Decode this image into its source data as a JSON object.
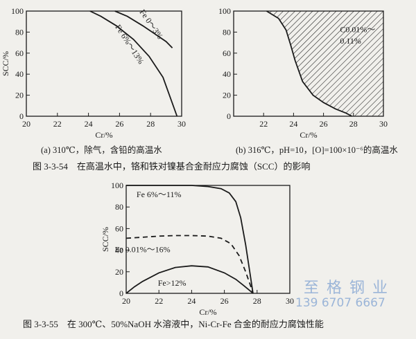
{
  "chart_data": [
    {
      "type": "line",
      "panel": "a",
      "xlabel": "Cr/%",
      "ylabel": "SCC/%",
      "xlim": [
        20,
        30
      ],
      "ylim": [
        0,
        100
      ],
      "xticks": [
        20,
        22,
        24,
        26,
        28,
        30
      ],
      "yticks": [
        0,
        20,
        40,
        60,
        80,
        100
      ],
      "grid": false,
      "series": [
        {
          "name": "Fe 0～3%",
          "x": [
            25.7,
            26.5,
            27.5,
            28.3,
            29.0,
            29.4
          ],
          "y": [
            100,
            95,
            86,
            78,
            71,
            65
          ]
        },
        {
          "name": "Fe 6%～13%",
          "x": [
            24.1,
            24.8,
            25.8,
            26.9,
            27.9,
            28.8,
            29.7
          ],
          "y": [
            100,
            95,
            86,
            73,
            57,
            37,
            0
          ]
        }
      ],
      "caption": "(a) 310℃，除气，含铅的高温水"
    },
    {
      "type": "area",
      "panel": "b",
      "xlabel": "Cr/%",
      "ylabel": "",
      "xlim": [
        20,
        30
      ],
      "ylim": [
        0,
        100
      ],
      "xticks": [
        22,
        24,
        26,
        28,
        30
      ],
      "yticks": [
        0,
        20,
        40,
        60,
        80,
        100
      ],
      "grid": false,
      "series": [
        {
          "name": "C0.01%～0.11%",
          "x": [
            22.2,
            23.0,
            23.5,
            23.8,
            24.1,
            24.6,
            25.3,
            26.0,
            26.8,
            27.5,
            27.9
          ],
          "y": [
            100,
            93,
            82,
            68,
            53,
            33,
            20,
            13,
            7,
            3,
            0
          ],
          "fill": "hatched region between curve and top edge"
        }
      ],
      "annotation": [
        "C0.01%～",
        "0.11%"
      ],
      "caption": "(b) 316℃，pH=10，[O]=100×10⁻⁶的高温水"
    },
    {
      "type": "line",
      "panel": "c",
      "xlabel": "Cr/%",
      "ylabel": "SCC/%",
      "xlim": [
        20,
        30
      ],
      "ylim": [
        0,
        100
      ],
      "xticks": [
        20,
        22,
        24,
        26,
        28,
        30
      ],
      "yticks": [
        0,
        20,
        40,
        60,
        80,
        100
      ],
      "grid": false,
      "series": [
        {
          "name": "Fe 6%～11%",
          "style": "solid",
          "x": [
            20,
            21,
            22,
            23,
            24,
            25,
            25.8,
            26.3,
            26.7,
            27.0,
            27.3,
            27.6,
            27.75
          ],
          "y": [
            100,
            100,
            100,
            100,
            100,
            99,
            97,
            93,
            85,
            70,
            45,
            15,
            0
          ]
        },
        {
          "name": "Fe 0.01%～16%",
          "style": "dashed",
          "x": [
            20,
            21,
            22,
            23,
            24,
            25,
            25.8,
            26.4,
            26.9,
            27.3,
            27.6,
            27.75
          ],
          "y": [
            51,
            52,
            53,
            53.5,
            53.5,
            53,
            51,
            46,
            35,
            20,
            7,
            0
          ]
        },
        {
          "name": "Fe>12%",
          "style": "solid",
          "x": [
            20,
            20.5,
            21,
            22,
            23,
            24,
            25,
            26,
            26.7,
            27.2,
            27.6,
            27.75
          ],
          "y": [
            0,
            6,
            11,
            19,
            24,
            25.5,
            24.5,
            19,
            13,
            7,
            2,
            0
          ]
        }
      ]
    }
  ],
  "figure_captions": {
    "fig_3_3_54": "图 3-3-54　在高温水中，铬和铁对镍基合金耐应力腐蚀（SCC）的影响",
    "fig_3_3_55": "图 3-3-55　在 300℃、50%NaOH 水溶液中，Ni-Cr-Fe 合金的耐应力腐蚀性能"
  },
  "watermark": {
    "line1": "至 格 钢 业",
    "line2": "139 6707 6667"
  },
  "colors": {
    "background": "#f1f0ec",
    "ink": "#1a1a1a",
    "watermark": "#9bb5d8"
  }
}
